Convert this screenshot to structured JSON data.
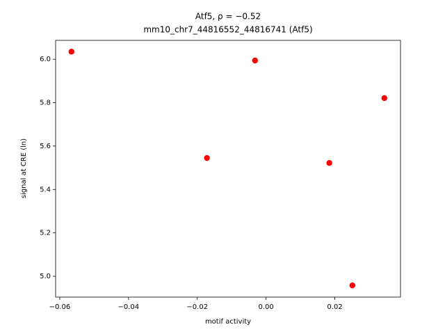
{
  "chart_data": {
    "type": "scatter",
    "title": "Atf5, ρ = −0.52",
    "subtitle": "mm10_chr7_44816552_44816741 (Atf5)",
    "xlabel": "motif activity",
    "ylabel": "signal at CRE (ln)",
    "color": "#ff0000",
    "x": [
      -0.0566,
      -0.0032,
      0.0344,
      -0.0172,
      0.0184,
      0.0251
    ],
    "y": [
      6.035,
      5.994,
      5.821,
      5.545,
      5.522,
      4.958
    ],
    "xlim": [
      -0.0612,
      0.0391
    ],
    "ylim": [
      4.904,
      6.087
    ],
    "xticks": [
      {
        "value": -0.06,
        "label": "−0.06"
      },
      {
        "value": -0.04,
        "label": "−0.04"
      },
      {
        "value": -0.02,
        "label": "−0.02"
      },
      {
        "value": 0,
        "label": "0.00"
      },
      0.02
    ],
    "yticks": [
      {
        "value": 5,
        "label": "5.0"
      },
      5.2,
      5.4,
      5.6,
      5.8,
      {
        "value": 6,
        "label": "6.0"
      }
    ]
  }
}
